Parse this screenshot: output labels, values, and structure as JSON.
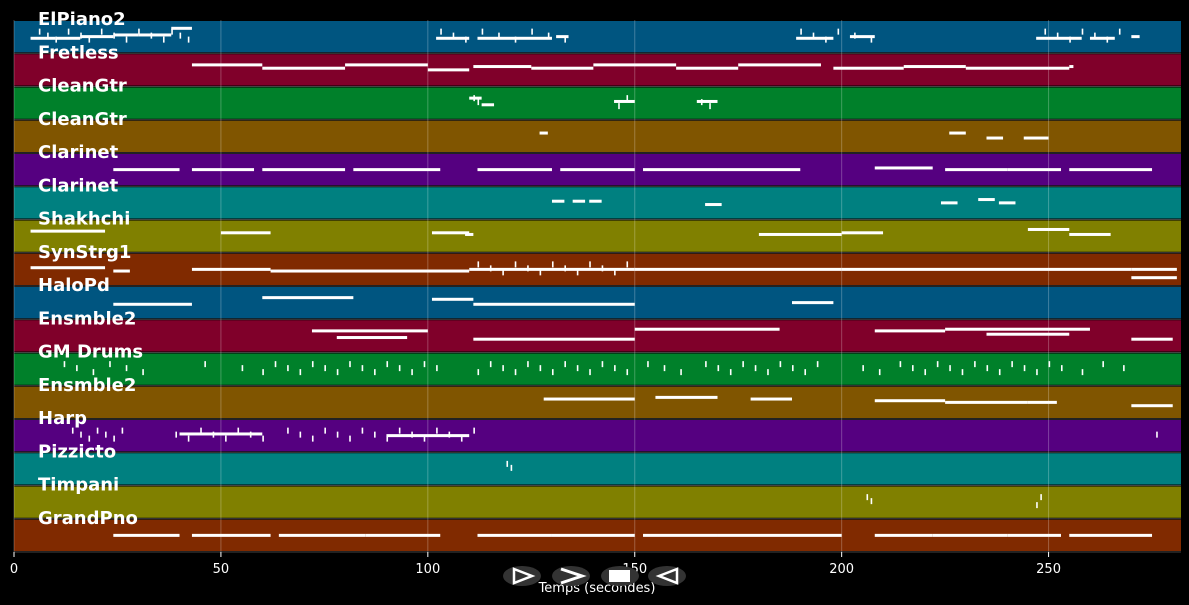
{
  "chart_data": {
    "type": "piano-roll",
    "xlabel": "Temps (secondes)",
    "xlim": [
      0,
      282
    ],
    "xticks": [
      0,
      50,
      100,
      150,
      200,
      250
    ],
    "xtick_labels": [
      "0",
      "50",
      "100",
      "150",
      "200",
      "250"
    ],
    "grid": true,
    "tracks": [
      {
        "name": "ElPiano2",
        "color": "#005580",
        "segments": [
          [
            4,
            10,
            0.55
          ],
          [
            10,
            16,
            0.55
          ],
          [
            16,
            24,
            0.5
          ],
          [
            24,
            30,
            0.45
          ],
          [
            30,
            38,
            0.45
          ],
          [
            38,
            43,
            0.25
          ],
          [
            102,
            110,
            0.55
          ],
          [
            112,
            130,
            0.55
          ],
          [
            131,
            134,
            0.5
          ],
          [
            189,
            198,
            0.55
          ],
          [
            202,
            208,
            0.5
          ],
          [
            247,
            258,
            0.55
          ],
          [
            260,
            266,
            0.55
          ],
          [
            270,
            272,
            0.5
          ]
        ],
        "ticks": [
          6,
          8,
          10,
          13,
          16,
          18,
          21,
          24,
          27,
          30,
          33,
          36,
          38,
          40,
          42,
          103,
          106,
          109,
          113,
          117,
          121,
          125,
          129,
          133,
          190,
          193,
          196,
          199,
          203,
          207,
          249,
          252,
          255,
          258,
          261,
          264,
          267
        ]
      },
      {
        "name": "Fretless",
        "color": "#80002a",
        "segments": [
          [
            43,
            60,
            0.35
          ],
          [
            60,
            80,
            0.45
          ],
          [
            80,
            100,
            0.35
          ],
          [
            100,
            110,
            0.5
          ],
          [
            111,
            125,
            0.4
          ],
          [
            125,
            140,
            0.45
          ],
          [
            140,
            160,
            0.35
          ],
          [
            160,
            175,
            0.45
          ],
          [
            175,
            195,
            0.35
          ],
          [
            198,
            215,
            0.45
          ],
          [
            215,
            230,
            0.4
          ],
          [
            230,
            255,
            0.45
          ],
          [
            255,
            256,
            0.4
          ]
        ],
        "ticks": []
      },
      {
        "name": "CleanGtr",
        "color": "#00802a",
        "segments": [
          [
            110,
            113,
            0.35
          ],
          [
            113,
            116,
            0.55
          ],
          [
            145,
            150,
            0.45
          ],
          [
            165,
            170,
            0.45
          ]
        ],
        "ticks": [
          111,
          112,
          146,
          148,
          166,
          168
        ]
      },
      {
        "name": "CleanGtr",
        "color": "#805500",
        "segments": [
          [
            127,
            129,
            0.4
          ],
          [
            226,
            230,
            0.4
          ],
          [
            235,
            239,
            0.55
          ],
          [
            244,
            250,
            0.55
          ]
        ],
        "ticks": []
      },
      {
        "name": "Clarinet",
        "color": "#550080",
        "segments": [
          [
            24,
            40,
            0.5
          ],
          [
            43,
            58,
            0.5
          ],
          [
            60,
            80,
            0.5
          ],
          [
            82,
            103,
            0.5
          ],
          [
            112,
            130,
            0.5
          ],
          [
            132,
            150,
            0.5
          ],
          [
            152,
            170,
            0.5
          ],
          [
            170,
            190,
            0.5
          ],
          [
            208,
            222,
            0.45
          ],
          [
            225,
            240,
            0.5
          ],
          [
            240,
            253,
            0.5
          ],
          [
            255,
            275,
            0.5
          ]
        ],
        "ticks": []
      },
      {
        "name": "Clarinet",
        "color": "#008080",
        "segments": [
          [
            130,
            133,
            0.45
          ],
          [
            135,
            138,
            0.45
          ],
          [
            139,
            142,
            0.45
          ],
          [
            167,
            171,
            0.55
          ],
          [
            224,
            228,
            0.5
          ],
          [
            233,
            237,
            0.4
          ],
          [
            238,
            242,
            0.5
          ]
        ],
        "ticks": []
      },
      {
        "name": "Shakhchi",
        "color": "#808000",
        "segments": [
          [
            4,
            22,
            0.35
          ],
          [
            50,
            62,
            0.4
          ],
          [
            101,
            110,
            0.4
          ],
          [
            109,
            111,
            0.45
          ],
          [
            180,
            200,
            0.45
          ],
          [
            200,
            210,
            0.4
          ],
          [
            245,
            255,
            0.3
          ],
          [
            255,
            265,
            0.45
          ]
        ],
        "ticks": []
      },
      {
        "name": "SynStrg1",
        "color": "#802a00",
        "segments": [
          [
            4,
            22,
            0.45
          ],
          [
            24,
            28,
            0.55
          ],
          [
            43,
            62,
            0.5
          ],
          [
            62,
            110,
            0.55
          ],
          [
            110,
            150,
            0.5
          ],
          [
            150,
            200,
            0.5
          ],
          [
            200,
            270,
            0.5
          ],
          [
            270,
            281,
            0.5
          ],
          [
            270,
            281,
            0.75
          ]
        ],
        "ticks": [
          112,
          115,
          118,
          121,
          124,
          127,
          130,
          133,
          136,
          139,
          142,
          145,
          148
        ]
      },
      {
        "name": "HaloPd",
        "color": "#005580",
        "segments": [
          [
            24,
            43,
            0.55
          ],
          [
            60,
            82,
            0.35
          ],
          [
            101,
            111,
            0.4
          ],
          [
            111,
            150,
            0.55
          ],
          [
            188,
            198,
            0.5
          ]
        ],
        "ticks": []
      },
      {
        "name": "Ensmble2",
        "color": "#80002a",
        "segments": [
          [
            72,
            100,
            0.35
          ],
          [
            78,
            95,
            0.55
          ],
          [
            111,
            150,
            0.6
          ],
          [
            150,
            185,
            0.3
          ],
          [
            208,
            225,
            0.35
          ],
          [
            225,
            260,
            0.3
          ],
          [
            235,
            255,
            0.45
          ],
          [
            270,
            280,
            0.6
          ]
        ],
        "ticks": []
      },
      {
        "name": "GM Drums",
        "color": "#00802a",
        "segments": [],
        "ticks": [
          12,
          15,
          19,
          23,
          27,
          31,
          46,
          55,
          60,
          63,
          66,
          69,
          72,
          75,
          78,
          81,
          84,
          87,
          90,
          93,
          96,
          99,
          102,
          112,
          115,
          118,
          121,
          124,
          127,
          130,
          133,
          136,
          139,
          142,
          145,
          148,
          153,
          157,
          161,
          167,
          170,
          173,
          176,
          179,
          182,
          185,
          188,
          191,
          194,
          205,
          209,
          214,
          217,
          220,
          223,
          226,
          229,
          232,
          235,
          238,
          241,
          244,
          247,
          250,
          253,
          258,
          263,
          268
        ]
      },
      {
        "name": "Ensmble2",
        "color": "#805500",
        "segments": [
          [
            128,
            150,
            0.4
          ],
          [
            155,
            170,
            0.35
          ],
          [
            178,
            188,
            0.4
          ],
          [
            208,
            225,
            0.45
          ],
          [
            225,
            245,
            0.5
          ],
          [
            245,
            252,
            0.5
          ],
          [
            270,
            280,
            0.6
          ]
        ],
        "ticks": []
      },
      {
        "name": "Harp",
        "color": "#550080",
        "segments": [
          [
            40,
            60,
            0.45
          ],
          [
            90,
            110,
            0.5
          ]
        ],
        "ticks": [
          14,
          16,
          18,
          20,
          22,
          24,
          26,
          39,
          42,
          45,
          48,
          51,
          54,
          57,
          60,
          66,
          69,
          72,
          75,
          78,
          81,
          84,
          87,
          90,
          93,
          96,
          99,
          102,
          105,
          108,
          111,
          276
        ]
      },
      {
        "name": "Pizzicto",
        "color": "#008080",
        "segments": [],
        "ticks": [
          119,
          120
        ]
      },
      {
        "name": "Timpani",
        "color": "#808000",
        "segments": [],
        "ticks": [
          206,
          207,
          247,
          248
        ]
      },
      {
        "name": "GrandPno",
        "color": "#802a00",
        "segments": [
          [
            24,
            40,
            0.5
          ],
          [
            43,
            62,
            0.5
          ],
          [
            64,
            85,
            0.5
          ],
          [
            85,
            103,
            0.5
          ],
          [
            112,
            130,
            0.5
          ],
          [
            130,
            150,
            0.5
          ],
          [
            152,
            170,
            0.5
          ],
          [
            170,
            200,
            0.5
          ],
          [
            208,
            222,
            0.5
          ],
          [
            222,
            240,
            0.5
          ],
          [
            240,
            253,
            0.5
          ],
          [
            255,
            275,
            0.5
          ]
        ],
        "ticks": []
      }
    ]
  },
  "controls": {
    "play_icon": "play-icon",
    "forward_icon": "forward-icon",
    "stop_icon": "stop-icon",
    "rewind_icon": "rewind-icon"
  }
}
